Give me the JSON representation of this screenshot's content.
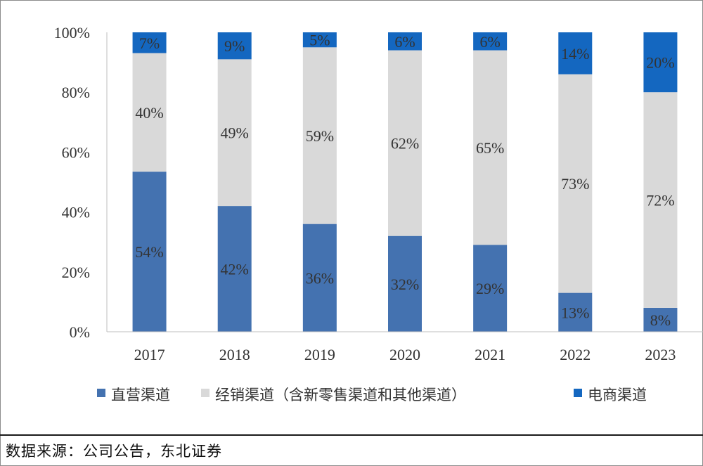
{
  "chart_data": {
    "type": "bar",
    "stacked": true,
    "categories": [
      "2017",
      "2018",
      "2019",
      "2020",
      "2021",
      "2022",
      "2023"
    ],
    "series": [
      {
        "name": "直营渠道",
        "color": "#4472b0",
        "values": [
          54,
          42,
          36,
          32,
          29,
          13,
          8
        ]
      },
      {
        "name": "经销渠道（含新零售渠道和其他渠道）",
        "color": "#d9d9d9",
        "values": [
          40,
          49,
          59,
          62,
          65,
          73,
          72
        ]
      },
      {
        "name": "电商渠道",
        "color": "#1467c0",
        "values": [
          7,
          9,
          5,
          6,
          6,
          14,
          20
        ]
      }
    ],
    "ylim": [
      0,
      100
    ],
    "yticks": [
      "0%",
      "20%",
      "40%",
      "60%",
      "80%",
      "100%"
    ],
    "value_suffix": "%",
    "legend_position": "bottom",
    "grid": false
  },
  "source": {
    "label": "数据来源：",
    "text": "公司公告，东北证券"
  }
}
